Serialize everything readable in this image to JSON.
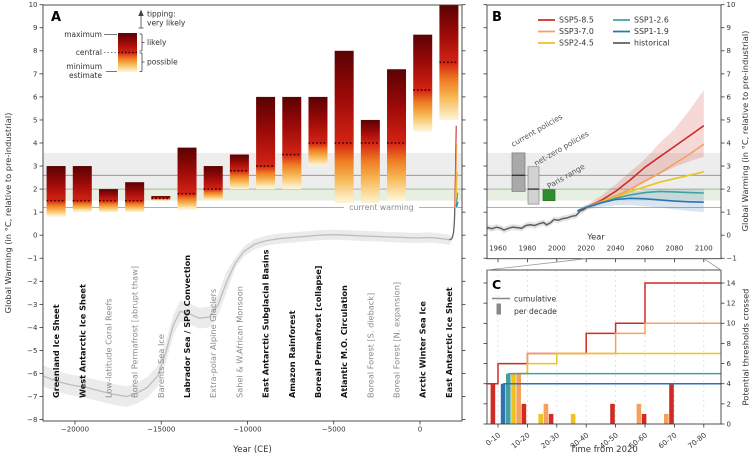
{
  "panel_labels": {
    "a": "A",
    "b": "B",
    "c": "C"
  },
  "colors": {
    "SSP5-8.5": "#cf2b24",
    "SSP3-7.0": "#f5a15c",
    "SSP2-4.5": "#eec21f",
    "SSP1-2.6": "#45a09b",
    "SSP1-1.9": "#2f72b2",
    "historical": "#5b6064",
    "paris_green": "#2f8c2f",
    "current_policies_gray": "#a9a9a9",
    "net_zero_gray": "#d2d2d2"
  },
  "chart_data": [
    {
      "panel": "A",
      "type": "bar",
      "xlabel": "Year (CE)",
      "ylabel": "Global Warming (in °C, relative to pre-industrial)",
      "xlim": [
        -21855,
        2435
      ],
      "ylim": [
        -8.05,
        10.0
      ],
      "xticks": [
        -20000,
        -15000,
        -10000,
        -5000,
        0
      ],
      "xtick_labels": [
        "−20000",
        "−15000",
        "−10000",
        "−5000",
        "0"
      ],
      "yticks": [
        -8,
        -7,
        -6,
        -5,
        -4,
        -3,
        -2,
        -1,
        0,
        1,
        2,
        3,
        4,
        5,
        6,
        7,
        8,
        9,
        10
      ],
      "ytick_labels": [
        "−8",
        "−7",
        "−6",
        "−5",
        "−4",
        "−3",
        "−2",
        "−1",
        "0",
        "1",
        "2",
        "3",
        "4",
        "5",
        "6",
        "7",
        "8",
        "9",
        "10"
      ],
      "legend": {
        "maximum": "maximum",
        "central": "central",
        "minimum_1": "minimum",
        "minimum_2": "estimate",
        "tipping_1": "tipping:",
        "tipping_2": "very likely",
        "likely": "likely",
        "possible": "possible"
      },
      "current_warming_label": "current warming",
      "reference_levels": {
        "current_warming": 1.2,
        "policy_line": 2.6,
        "gray_band": [
          2.03,
          3.57
        ],
        "paris_band": [
          1.5,
          2.0
        ]
      },
      "tipping_elements": [
        {
          "name": "Greenland Ice Sheet",
          "min": 0.8,
          "central": 1.5,
          "max": 3.0,
          "bold": true
        },
        {
          "name": "West Antarctic Ice Sheet",
          "min": 1.0,
          "central": 1.5,
          "max": 3.0,
          "bold": true
        },
        {
          "name": "Low-latitude Coral Reefs",
          "min": 1.0,
          "central": 1.5,
          "max": 2.0,
          "bold": false
        },
        {
          "name": "Boreal Permafrost [abrupt thaw]",
          "min": 1.0,
          "central": 1.5,
          "max": 2.3,
          "bold": false
        },
        {
          "name": "Barents Sea Ice",
          "min": 1.5,
          "central": 1.6,
          "max": 1.7,
          "bold": false
        },
        {
          "name": "Labrador Sea / SPG Convection",
          "min": 1.1,
          "central": 1.8,
          "max": 3.8,
          "bold": true
        },
        {
          "name": "Extra-polar Alpine Glaciers",
          "min": 1.5,
          "central": 2.0,
          "max": 3.0,
          "bold": false
        },
        {
          "name": "Sahel & W.African Monsoon",
          "min": 2.0,
          "central": 2.8,
          "max": 3.5,
          "bold": false
        },
        {
          "name": "East Antarctic Subglacial Basins",
          "min": 2.0,
          "central": 3.0,
          "max": 6.0,
          "bold": true
        },
        {
          "name": "Amazon Rainforest",
          "min": 2.0,
          "central": 3.5,
          "max": 6.0,
          "bold": true
        },
        {
          "name": "Boreal Permafrost [collapse]",
          "min": 3.0,
          "central": 4.0,
          "max": 6.0,
          "bold": true
        },
        {
          "name": "Atlantic M.O. Circulation",
          "min": 1.4,
          "central": 4.0,
          "max": 8.0,
          "bold": true
        },
        {
          "name": "Boreal Forest [S. dieback]",
          "min": 1.4,
          "central": 4.0,
          "max": 5.0,
          "bold": false
        },
        {
          "name": "Boreal Forest [N. expansion]",
          "min": 1.5,
          "central": 4.0,
          "max": 7.2,
          "bold": false
        },
        {
          "name": "Arctic Winter Sea Ice",
          "min": 4.5,
          "central": 6.3,
          "max": 8.7,
          "bold": true
        },
        {
          "name": "East Antarctic Ice Sheet",
          "min": 5.0,
          "central": 7.5,
          "max": 10.0,
          "bold": true
        }
      ],
      "paleo_line": [
        [
          -21855,
          -6.1
        ],
        [
          -21000,
          -6.35
        ],
        [
          -20200,
          -6.5
        ],
        [
          -19400,
          -6.6
        ],
        [
          -18600,
          -6.75
        ],
        [
          -17800,
          -6.9
        ],
        [
          -17000,
          -7.0
        ],
        [
          -16400,
          -6.85
        ],
        [
          -15800,
          -6.6
        ],
        [
          -15200,
          -6.1
        ],
        [
          -14700,
          -5.0
        ],
        [
          -14300,
          -3.9
        ],
        [
          -13900,
          -3.3
        ],
        [
          -13400,
          -3.4
        ],
        [
          -12800,
          -3.6
        ],
        [
          -12200,
          -3.55
        ],
        [
          -11700,
          -3.0
        ],
        [
          -11200,
          -2.0
        ],
        [
          -10700,
          -1.2
        ],
        [
          -10200,
          -0.7
        ],
        [
          -9600,
          -0.4
        ],
        [
          -9000,
          -0.25
        ],
        [
          -8200,
          -0.15
        ],
        [
          -7400,
          -0.1
        ],
        [
          -6600,
          -0.05
        ],
        [
          -5800,
          0.0
        ],
        [
          -5000,
          0.02
        ],
        [
          -4200,
          0.0
        ],
        [
          -3400,
          -0.03
        ],
        [
          -2600,
          -0.05
        ],
        [
          -1800,
          -0.08
        ],
        [
          -1000,
          -0.1
        ],
        [
          -200,
          -0.12
        ],
        [
          600,
          -0.1
        ],
        [
          1300,
          -0.15
        ],
        [
          1700,
          -0.2
        ],
        [
          1850,
          -0.15
        ],
        [
          1940,
          0.1
        ],
        [
          1980,
          0.45
        ],
        [
          2000,
          0.7
        ],
        [
          2020,
          1.2
        ]
      ],
      "projection_spike": [
        [
          "SSP5-8.5",
          4.75
        ],
        [
          "SSP3-7.0",
          3.95
        ],
        [
          "SSP2-4.5",
          2.75
        ],
        [
          "SSP1-2.6",
          1.85
        ],
        [
          "SSP1-1.9",
          1.45
        ]
      ]
    },
    {
      "panel": "B",
      "type": "line",
      "xlabel": "Year",
      "ylabel_right": "Global Warming (in °C, relative to pre-industrial)",
      "xlim": [
        1952,
        2112
      ],
      "ylim": [
        -1,
        10
      ],
      "xticks": [
        1960,
        1980,
        2000,
        2020,
        2040,
        2060,
        2080,
        2100
      ],
      "xtick_labels": [
        "1960",
        "1980",
        "2000",
        "2020",
        "2040",
        "2060",
        "2080",
        "2100"
      ],
      "yticks": [
        -1,
        0,
        1,
        2,
        3,
        4,
        5,
        6,
        7,
        8,
        9,
        10
      ],
      "ytick_labels": [
        "−1",
        "0",
        "1",
        "2",
        "3",
        "4",
        "5",
        "6",
        "7",
        "8",
        "9",
        "10"
      ],
      "legend_order": [
        "SSP5-8.5",
        "SSP3-7.0",
        "SSP2-4.5",
        "SSP1-2.6",
        "SSP1-1.9",
        "historical"
      ],
      "historical_x": [
        1950,
        1953,
        1956,
        1959,
        1962,
        1964,
        1967,
        1970,
        1973,
        1976,
        1979,
        1982,
        1985,
        1988,
        1991,
        1993,
        1996,
        1998,
        2001,
        2004,
        2007,
        2010,
        2013,
        2016,
        2018,
        2020
      ],
      "historical_y": [
        0.3,
        0.33,
        0.28,
        0.35,
        0.3,
        0.22,
        0.3,
        0.35,
        0.33,
        0.3,
        0.42,
        0.45,
        0.42,
        0.5,
        0.55,
        0.45,
        0.55,
        0.68,
        0.65,
        0.72,
        0.75,
        0.82,
        0.85,
        1.05,
        1.1,
        1.2
      ],
      "series": [
        {
          "name": "SSP5-8.5",
          "x": [
            2014,
            2020,
            2030,
            2040,
            2050,
            2060,
            2070,
            2080,
            2090,
            2100
          ],
          "y": [
            1.05,
            1.2,
            1.5,
            1.9,
            2.4,
            2.95,
            3.4,
            3.85,
            4.3,
            4.75
          ],
          "band_upper": [
            1.1,
            1.3,
            1.7,
            2.2,
            2.75,
            3.3,
            4.0,
            4.6,
            5.4,
            6.3
          ],
          "band_lower": [
            1.0,
            1.1,
            1.35,
            1.6,
            1.95,
            2.3,
            2.65,
            2.95,
            3.2,
            3.4
          ]
        },
        {
          "name": "SSP3-7.0",
          "x": [
            2014,
            2020,
            2030,
            2040,
            2050,
            2060,
            2070,
            2080,
            2090,
            2100
          ],
          "y": [
            1.05,
            1.2,
            1.45,
            1.7,
            2.0,
            2.35,
            2.7,
            3.1,
            3.5,
            3.95
          ],
          "band_upper": null,
          "band_lower": null
        },
        {
          "name": "SSP2-4.5",
          "x": [
            2014,
            2020,
            2030,
            2040,
            2050,
            2060,
            2070,
            2080,
            2090,
            2100
          ],
          "y": [
            1.05,
            1.2,
            1.45,
            1.65,
            1.9,
            2.1,
            2.3,
            2.45,
            2.6,
            2.75
          ],
          "band_upper": null,
          "band_lower": null
        },
        {
          "name": "SSP1-2.6",
          "x": [
            2014,
            2020,
            2030,
            2040,
            2050,
            2060,
            2070,
            2080,
            2090,
            2100
          ],
          "y": [
            1.05,
            1.2,
            1.4,
            1.6,
            1.75,
            1.85,
            1.9,
            1.88,
            1.85,
            1.83
          ],
          "band_upper": null,
          "band_lower": null
        },
        {
          "name": "SSP1-1.9",
          "x": [
            2014,
            2020,
            2030,
            2040,
            2050,
            2060,
            2070,
            2080,
            2090,
            2100
          ],
          "y": [
            1.05,
            1.2,
            1.4,
            1.55,
            1.6,
            1.58,
            1.53,
            1.48,
            1.45,
            1.43
          ],
          "band_upper": [
            1.1,
            1.3,
            1.55,
            1.75,
            1.88,
            1.95,
            2.0,
            2.0,
            2.0,
            2.0
          ],
          "band_lower": [
            1.0,
            1.1,
            1.22,
            1.3,
            1.3,
            1.25,
            1.2,
            1.12,
            1.05,
            1.0
          ]
        }
      ],
      "policy_boxes": [
        {
          "label": "current policies",
          "lo": 1.9,
          "hi": 3.57,
          "median": 2.6
        },
        {
          "label": "net-zero policies",
          "lo": 1.35,
          "hi": 2.97,
          "median": 2.0
        },
        {
          "label": "Paris range",
          "lo": 1.5,
          "hi": 1.97,
          "median": null
        }
      ]
    },
    {
      "panel": "C",
      "type": "step",
      "xlabel": "Time from 2020",
      "ylabel_right": "Potential thresholds crossed",
      "categories": [
        "0-10",
        "10-20",
        "20-30",
        "30-40",
        "40-50",
        "50-60",
        "60-70",
        "70-80"
      ],
      "yticks": [
        0,
        2,
        4,
        6,
        8,
        10,
        12,
        14
      ],
      "ytick_labels": [
        "0",
        "2",
        "4",
        "6",
        "8",
        "10",
        "12",
        "14"
      ],
      "legend": {
        "cumulative": "cumulative",
        "per_decade": "per decade"
      },
      "cumulative_series": [
        {
          "name": "SSP5-8.5",
          "start": 4,
          "values": [
            6,
            7,
            7,
            9,
            10,
            14,
            14,
            14
          ]
        },
        {
          "name": "SSP3-7.0",
          "start": 0,
          "values": [
            5,
            7,
            7,
            7,
            9,
            10,
            10,
            10
          ]
        },
        {
          "name": "SSP2-4.5",
          "start": 0,
          "values": [
            5,
            6,
            7,
            7,
            7,
            7,
            7,
            7
          ]
        },
        {
          "name": "SSP1-2.6",
          "start": 0,
          "values": [
            5,
            5,
            5,
            5,
            5,
            5,
            5,
            5
          ]
        },
        {
          "name": "SSP1-1.9",
          "start": 0,
          "values": [
            4,
            4,
            4,
            4,
            4,
            4,
            4,
            4
          ]
        }
      ],
      "per_decade_bars": [
        {
          "decade_index": 0,
          "bars": [
            {
              "scenario": "SSP5-8.5",
              "count": 4
            },
            {
              "scenario": "SSP1-1.9",
              "count": 4
            },
            {
              "scenario": "SSP1-2.6",
              "count": 5
            },
            {
              "scenario": "SSP2-4.5",
              "count": 5
            },
            {
              "scenario": "SSP3-7.0",
              "count": 5
            },
            {
              "scenario": "SSP5-8.5",
              "count": 2
            }
          ]
        },
        {
          "decade_index": 1,
          "bars": [
            {
              "scenario": "SSP2-4.5",
              "count": 1
            },
            {
              "scenario": "SSP3-7.0",
              "count": 2
            },
            {
              "scenario": "SSP5-8.5",
              "count": 1
            }
          ]
        },
        {
          "decade_index": 2,
          "bars": [
            {
              "scenario": "SSP2-4.5",
              "count": 1
            }
          ]
        },
        {
          "decade_index": 3,
          "bars": [
            {
              "scenario": "SSP5-8.5",
              "count": 2
            }
          ]
        },
        {
          "decade_index": 4,
          "bars": [
            {
              "scenario": "SSP3-7.0",
              "count": 2
            },
            {
              "scenario": "SSP5-8.5",
              "count": 1
            }
          ]
        },
        {
          "decade_index": 5,
          "bars": [
            {
              "scenario": "SSP3-7.0",
              "count": 1
            },
            {
              "scenario": "SSP5-8.5",
              "count": 4
            }
          ]
        }
      ]
    }
  ]
}
